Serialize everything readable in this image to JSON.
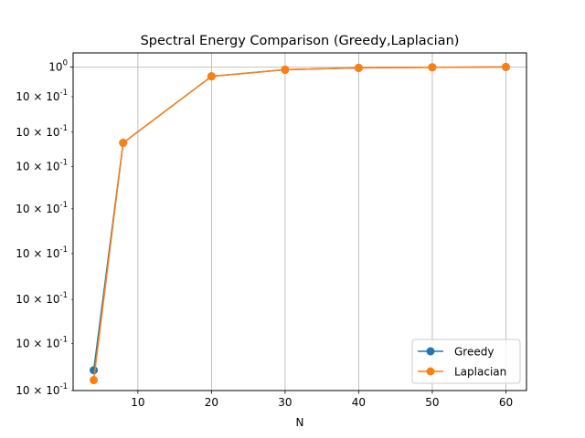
{
  "chart_data": {
    "type": "line",
    "title": "Spectral Energy Comparison (Greedy,Laplacian)",
    "xlabel": "N",
    "ylabel": "",
    "x": [
      4,
      8,
      20,
      30,
      40,
      50,
      60
    ],
    "x_ticks": [
      10,
      20,
      30,
      40,
      50,
      60
    ],
    "xlim": [
      1.2,
      62.8
    ],
    "y_scale": "log",
    "ylim": [
      0.17,
      1.08
    ],
    "y_ticks": [
      {
        "value": 1.0,
        "label": "10^0"
      },
      {
        "value": 0.85,
        "label": "10×10^-1"
      },
      {
        "value": 0.7,
        "label": "10×10^-1"
      },
      {
        "value": 0.58,
        "label": "10×10^-1"
      },
      {
        "value": 0.46,
        "label": "10×10^-1"
      },
      {
        "value": 0.36,
        "label": "10×10^-1"
      },
      {
        "value": 0.28,
        "label": "10×10^-1"
      },
      {
        "value": 0.22,
        "label": "10×10^-1"
      },
      {
        "value": 0.17,
        "label": "10×10^-1"
      }
    ],
    "grid": true,
    "legend_position": "lower-right",
    "series": [
      {
        "name": "Greedy",
        "color": "#1f77b4",
        "values": [
          0.19,
          0.66,
          0.95,
          0.985,
          0.995,
          0.998,
          1.0
        ]
      },
      {
        "name": "Laplacian",
        "color": "#ff7f0e",
        "values": [
          0.18,
          0.66,
          0.95,
          0.985,
          0.995,
          0.998,
          1.0
        ]
      }
    ]
  }
}
